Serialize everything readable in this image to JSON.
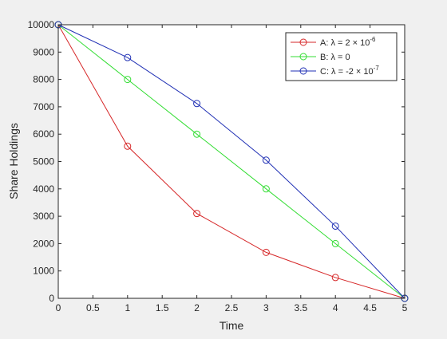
{
  "chart_data": {
    "type": "line",
    "title": "",
    "xlabel": "Time",
    "ylabel": "Share Holdings",
    "xlim": [
      0,
      5
    ],
    "ylim": [
      0,
      10000
    ],
    "x_ticks": [
      0,
      0.5,
      1,
      1.5,
      2,
      2.5,
      3,
      3.5,
      4,
      4.5,
      5
    ],
    "y_ticks": [
      0,
      1000,
      2000,
      3000,
      4000,
      5000,
      6000,
      7000,
      8000,
      9000,
      10000
    ],
    "grid": false,
    "legend_position": "top-right",
    "marker": "circle",
    "series": [
      {
        "legend_text": "A: λ = 2 × 10",
        "legend_exp": "-6",
        "color": "#d62728",
        "x": [
          0,
          1,
          2,
          3,
          4,
          5
        ],
        "y": [
          10000,
          5560,
          3100,
          1680,
          760,
          0
        ]
      },
      {
        "legend_text": "B: λ = 0",
        "legend_exp": "",
        "color": "#33dd33",
        "x": [
          0,
          1,
          2,
          3,
          4,
          5
        ],
        "y": [
          10000,
          8000,
          6000,
          4000,
          2000,
          0
        ]
      },
      {
        "legend_text": "C: λ = -2 × 10",
        "legend_exp": "-7",
        "color": "#1f2fb4",
        "x": [
          0,
          1,
          2,
          3,
          4,
          5
        ],
        "y": [
          10000,
          8800,
          7120,
          5050,
          2640,
          0
        ]
      }
    ]
  }
}
